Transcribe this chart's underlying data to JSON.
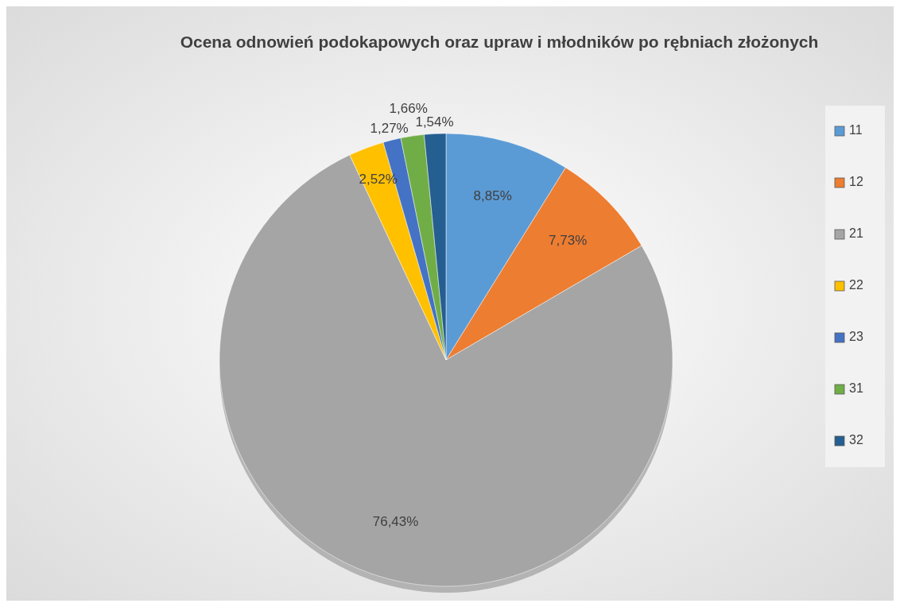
{
  "chart_data": {
    "type": "pie",
    "title": "Ocena odnowień podokapowych oraz upraw i młodników po rębniach złożonych",
    "categories": [
      "11",
      "12",
      "21",
      "22",
      "23",
      "31",
      "32"
    ],
    "values": [
      8.85,
      7.73,
      76.43,
      2.52,
      1.27,
      1.66,
      1.54
    ],
    "colors": [
      "#5b9bd5",
      "#ed7d31",
      "#a5a5a5",
      "#ffc000",
      "#4472c4",
      "#70ad47",
      "#255e91"
    ],
    "value_labels": [
      "8,85%",
      "7,73%",
      "76,43%",
      "2,52%",
      "1,27%",
      "1,66%",
      "1,54%"
    ],
    "legend": "right"
  }
}
